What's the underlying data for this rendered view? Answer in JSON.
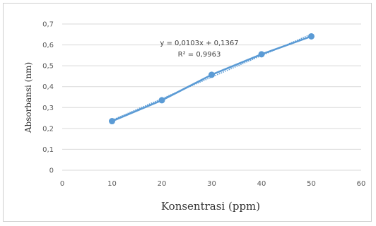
{
  "chart_data": {
    "type": "scatter",
    "xlabel": "Konsentrasi (ppm)",
    "ylabel": "Absorbansi (nm)",
    "xlim": [
      0,
      60
    ],
    "ylim": [
      0,
      0.7
    ],
    "x_ticks": [
      "0",
      "10",
      "20",
      "30",
      "40",
      "50",
      "60"
    ],
    "y_ticks": [
      "0",
      "0,1",
      "0,2",
      "0,3",
      "0,4",
      "0,5",
      "0,6",
      "0,7"
    ],
    "x": [
      10,
      20,
      30,
      40,
      50
    ],
    "y": [
      0.235,
      0.335,
      0.457,
      0.555,
      0.641
    ],
    "trendline": {
      "slope": 0.0103,
      "intercept": 0.1367,
      "style": "dotted"
    },
    "annotations": [
      "y = 0,0103x + 0,1367",
      "R² = 0,9963"
    ],
    "grid": "horizontal",
    "legend": "none",
    "colors": {
      "series": "#5B9BD5",
      "grid": "#d9d9d9",
      "trend": "#5B9BD5"
    }
  }
}
